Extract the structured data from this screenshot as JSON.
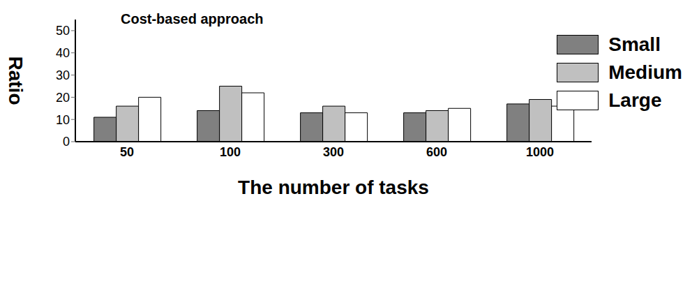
{
  "chart_data": {
    "type": "bar",
    "title": "Cost-based approach",
    "x_label": "The number of tasks",
    "y_label": "Ratio",
    "categories": [
      "50",
      "100",
      "300",
      "600",
      "1000"
    ],
    "series": [
      {
        "name": "Small",
        "color": "#808080",
        "values": [
          11,
          14,
          13,
          13,
          17
        ]
      },
      {
        "name": "Medium",
        "color": "#c0c0c0",
        "values": [
          16,
          25,
          16,
          14,
          19
        ]
      },
      {
        "name": "Large",
        "color": "#ffffff",
        "values": [
          20,
          22,
          13,
          15,
          16
        ]
      }
    ],
    "ylim": [
      0,
      55
    ],
    "yticks": [
      0,
      10,
      20,
      30,
      40,
      50
    ],
    "grid": false,
    "legend": "top right"
  }
}
